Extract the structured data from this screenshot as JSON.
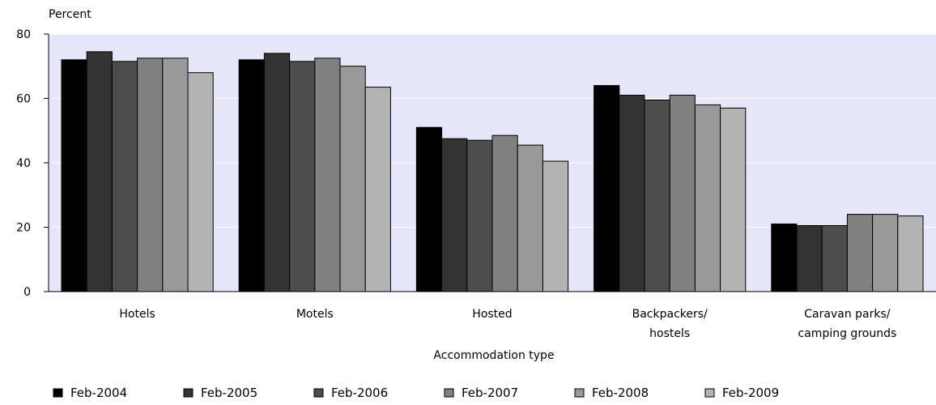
{
  "chart_data": {
    "type": "bar",
    "ylabel": "Percent",
    "xlabel": "Accommodation type",
    "ylim": [
      0,
      80
    ],
    "yticks": [
      0,
      20,
      40,
      60,
      80
    ],
    "grid": "horizontal",
    "legend_placement": "bottom",
    "plot_background": "#e6e6fa",
    "categories": [
      [
        "Hotels"
      ],
      [
        "Motels"
      ],
      [
        "Hosted"
      ],
      [
        "Backpackers/",
        "hostels"
      ],
      [
        "Caravan parks/",
        "camping grounds"
      ]
    ],
    "series": [
      {
        "name": "Feb-2004",
        "color": "#000000",
        "values": [
          72,
          72,
          51,
          64,
          21
        ]
      },
      {
        "name": "Feb-2005",
        "color": "#333333",
        "values": [
          74.5,
          74,
          47.5,
          61,
          20.5
        ]
      },
      {
        "name": "Feb-2006",
        "color": "#4d4d4d",
        "values": [
          71.5,
          71.5,
          47,
          59.5,
          20.5
        ]
      },
      {
        "name": "Feb-2007",
        "color": "#808080",
        "values": [
          72.5,
          72.5,
          48.5,
          61,
          24
        ]
      },
      {
        "name": "Feb-2008",
        "color": "#999999",
        "values": [
          72.5,
          70,
          45.5,
          58,
          24
        ]
      },
      {
        "name": "Feb-2009",
        "color": "#b3b3b3",
        "values": [
          68,
          63.5,
          40.5,
          57,
          23.5
        ]
      }
    ]
  }
}
